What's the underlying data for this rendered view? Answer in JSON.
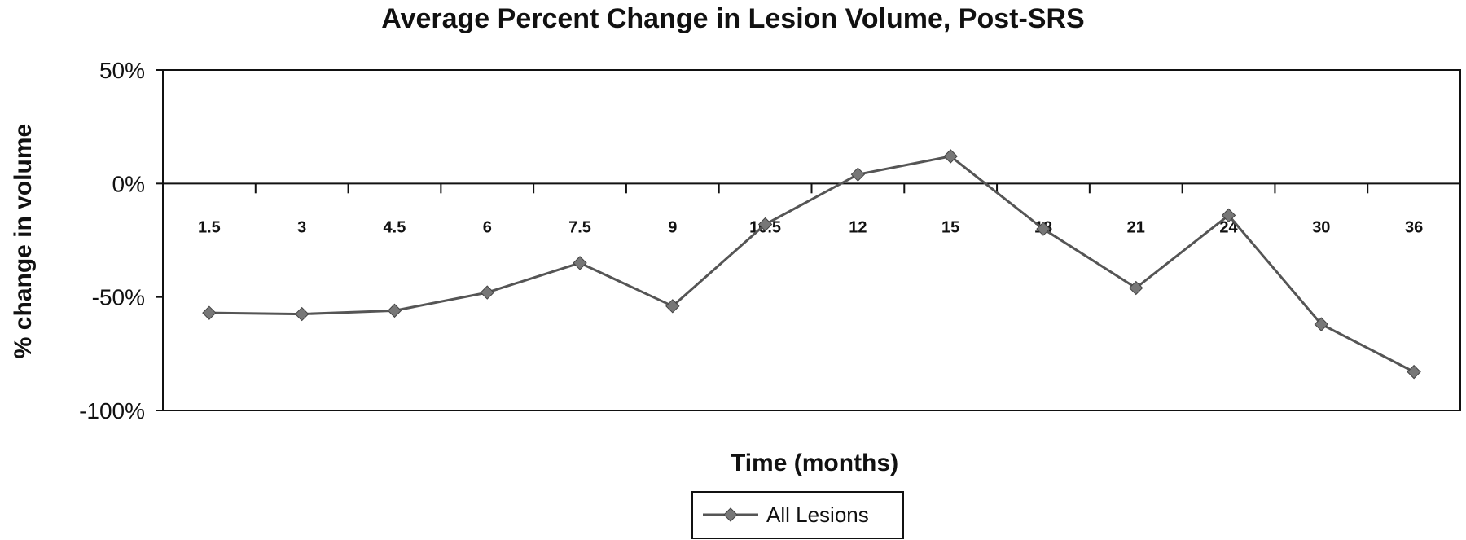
{
  "chart_data": {
    "type": "line",
    "title": "Average Percent Change in Lesion Volume, Post-SRS",
    "xlabel": "Time (months)",
    "ylabel": "% change in volume",
    "categories": [
      "1.5",
      "3",
      "4.5",
      "6",
      "7.5",
      "9",
      "10.5",
      "12",
      "15",
      "18",
      "21",
      "24",
      "30",
      "36"
    ],
    "series": [
      {
        "name": "All Lesions",
        "values": [
          -57,
          -57.5,
          -56,
          -48,
          -35,
          -54,
          -18,
          4,
          12,
          -20,
          -46,
          -14,
          -62,
          -83
        ],
        "color": "#555555"
      }
    ],
    "yticks": [
      "50%",
      "0%",
      "-50%",
      "-100%"
    ],
    "ylim": [
      -100,
      50
    ],
    "grid": false,
    "legend": "bottom-center"
  }
}
